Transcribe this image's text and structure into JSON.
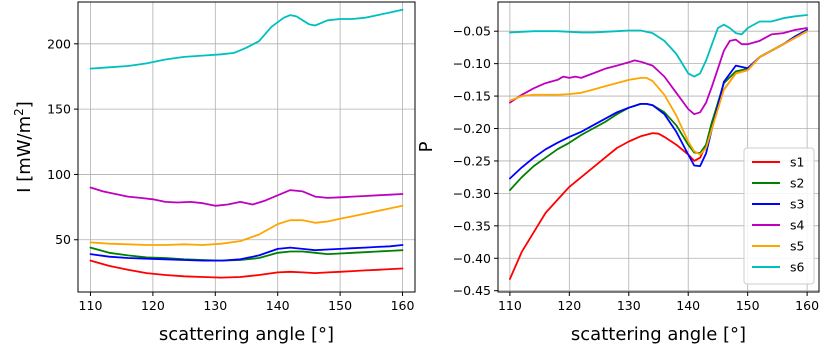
{
  "chart_data": [
    {
      "type": "line",
      "xlabel": "scattering angle [°]",
      "ylabel_main": "I [mW/m",
      "ylabel_sup": "2",
      "ylabel_tail": "]",
      "xlim": [
        108,
        162
      ],
      "ylim": [
        10,
        232
      ],
      "xticks": [
        110,
        120,
        130,
        140,
        150,
        160
      ],
      "yticks": [
        50,
        100,
        150,
        200
      ],
      "grid": true,
      "series": [
        {
          "color": "#ff0000",
          "x": [
            110,
            113,
            116,
            119,
            122,
            125,
            128,
            131,
            134,
            137,
            140,
            142,
            144,
            146,
            148,
            150,
            152,
            154,
            156,
            158,
            160
          ],
          "y": [
            34,
            30,
            27,
            24.5,
            23,
            22,
            21.5,
            21,
            21.5,
            23,
            25,
            25.5,
            25,
            24.5,
            25,
            25.5,
            26,
            26.5,
            27,
            27.5,
            28
          ]
        },
        {
          "color": "#008000",
          "x": [
            110,
            113,
            116,
            119,
            122,
            125,
            128,
            131,
            134,
            137,
            140,
            142,
            144,
            146,
            148,
            150,
            152,
            154,
            156,
            158,
            160
          ],
          "y": [
            44,
            40,
            38,
            36.5,
            36,
            35,
            34.5,
            34,
            34.5,
            36,
            40,
            41,
            41,
            40,
            39,
            39.5,
            40,
            40.5,
            41,
            41.5,
            42
          ]
        },
        {
          "color": "#0000ff",
          "x": [
            110,
            113,
            116,
            119,
            122,
            125,
            128,
            131,
            134,
            137,
            140,
            142,
            144,
            146,
            148,
            150,
            152,
            154,
            156,
            158,
            160
          ],
          "y": [
            39,
            37,
            36,
            35.5,
            35,
            34.5,
            34,
            34,
            35,
            38,
            43,
            44,
            43,
            42,
            42.5,
            43,
            43.5,
            44,
            44.5,
            45,
            46
          ]
        },
        {
          "color": "#bf00bf",
          "x": [
            110,
            112,
            114,
            116,
            118,
            120,
            122,
            124,
            126,
            128,
            130,
            132,
            134,
            136,
            138,
            140,
            142,
            144,
            146,
            148,
            150,
            152,
            154,
            156,
            158,
            160
          ],
          "y": [
            90,
            87,
            85,
            83,
            82,
            81,
            79,
            78.5,
            79,
            78,
            76,
            77,
            79,
            77,
            80,
            84,
            88,
            87,
            83,
            82,
            82.5,
            83,
            83.5,
            84,
            84.5,
            85
          ]
        },
        {
          "color": "#ffa500",
          "x": [
            110,
            113,
            116,
            119,
            122,
            125,
            128,
            131,
            134,
            137,
            140,
            142,
            144,
            146,
            148,
            150,
            152,
            154,
            156,
            158,
            160
          ],
          "y": [
            48,
            47,
            46.5,
            46,
            46,
            46.5,
            46,
            47,
            49,
            54,
            62,
            65,
            65,
            63,
            64,
            66,
            68,
            70,
            72,
            74,
            76
          ]
        },
        {
          "color": "#00bfbf",
          "x": [
            110,
            113,
            116,
            119,
            122,
            125,
            128,
            131,
            133,
            135,
            137,
            139,
            141,
            142,
            143,
            145,
            146,
            148,
            150,
            152,
            154,
            156,
            158,
            160
          ],
          "y": [
            181,
            182,
            183,
            185,
            188,
            190,
            191,
            192,
            193,
            197,
            202,
            213,
            220,
            222,
            221,
            215,
            214,
            218,
            219,
            219,
            220,
            222,
            224,
            226
          ]
        }
      ]
    },
    {
      "type": "line",
      "xlabel": "scattering angle [°]",
      "ylabel": "P",
      "xlim": [
        108,
        162
      ],
      "ylim": [
        -0.452,
        -0.005
      ],
      "xticks": [
        110,
        120,
        130,
        140,
        150,
        160
      ],
      "yticks": [
        -0.45,
        -0.4,
        -0.35,
        -0.3,
        -0.25,
        -0.2,
        -0.15,
        -0.1,
        -0.05
      ],
      "ytick_labels": [
        "−0.45",
        "−0.40",
        "−0.35",
        "−0.30",
        "−0.25",
        "−0.20",
        "−0.15",
        "−0.10",
        "−0.05"
      ],
      "grid": true,
      "legend_location": "lower-right",
      "series": [
        {
          "name": "s1",
          "color": "#ff0000",
          "x": [
            110,
            112,
            114,
            116,
            118,
            120,
            122,
            124,
            126,
            128,
            130,
            132,
            134,
            135,
            136,
            138,
            140,
            141,
            142,
            143,
            144,
            146,
            148,
            150,
            152,
            154,
            156,
            158,
            160
          ],
          "y": [
            -0.432,
            -0.39,
            -0.36,
            -0.33,
            -0.31,
            -0.29,
            -0.275,
            -0.26,
            -0.245,
            -0.23,
            -0.22,
            -0.212,
            -0.207,
            -0.208,
            -0.213,
            -0.225,
            -0.24,
            -0.25,
            -0.245,
            -0.225,
            -0.19,
            -0.14,
            -0.115,
            -0.11,
            -0.09,
            -0.08,
            -0.07,
            -0.06,
            -0.05
          ]
        },
        {
          "name": "s2",
          "color": "#008000",
          "x": [
            110,
            112,
            114,
            116,
            118,
            120,
            122,
            124,
            126,
            128,
            130,
            132,
            133,
            134,
            136,
            138,
            140,
            141,
            142,
            143,
            144,
            146,
            148,
            150,
            152,
            154,
            156,
            158,
            160
          ],
          "y": [
            -0.295,
            -0.275,
            -0.258,
            -0.245,
            -0.232,
            -0.222,
            -0.21,
            -0.2,
            -0.19,
            -0.178,
            -0.168,
            -0.162,
            -0.162,
            -0.164,
            -0.175,
            -0.195,
            -0.225,
            -0.237,
            -0.238,
            -0.225,
            -0.19,
            -0.13,
            -0.112,
            -0.108,
            -0.09,
            -0.08,
            -0.07,
            -0.058,
            -0.048
          ]
        },
        {
          "name": "s3",
          "color": "#0000ff",
          "x": [
            110,
            112,
            114,
            116,
            118,
            120,
            122,
            124,
            126,
            128,
            130,
            132,
            133,
            134,
            136,
            138,
            140,
            141,
            142,
            143,
            144,
            146,
            148,
            150,
            152,
            154,
            156,
            158,
            160
          ],
          "y": [
            -0.277,
            -0.26,
            -0.245,
            -0.232,
            -0.222,
            -0.213,
            -0.205,
            -0.195,
            -0.185,
            -0.175,
            -0.168,
            -0.162,
            -0.162,
            -0.164,
            -0.178,
            -0.205,
            -0.24,
            -0.257,
            -0.258,
            -0.238,
            -0.2,
            -0.128,
            -0.103,
            -0.107,
            -0.09,
            -0.08,
            -0.07,
            -0.058,
            -0.048
          ]
        },
        {
          "name": "s4",
          "color": "#bf00bf",
          "x": [
            110,
            112,
            114,
            116,
            118,
            119,
            120,
            121,
            122,
            124,
            126,
            128,
            130,
            131,
            132,
            133,
            134,
            136,
            138,
            140,
            141,
            142,
            143,
            144,
            146,
            147,
            148,
            149,
            150,
            152,
            154,
            156,
            158,
            160
          ],
          "y": [
            -0.16,
            -0.148,
            -0.138,
            -0.13,
            -0.125,
            -0.12,
            -0.122,
            -0.12,
            -0.122,
            -0.115,
            -0.108,
            -0.103,
            -0.098,
            -0.095,
            -0.097,
            -0.1,
            -0.103,
            -0.12,
            -0.145,
            -0.17,
            -0.178,
            -0.175,
            -0.16,
            -0.135,
            -0.08,
            -0.065,
            -0.063,
            -0.07,
            -0.07,
            -0.065,
            -0.055,
            -0.053,
            -0.048,
            -0.045
          ]
        },
        {
          "name": "s5",
          "color": "#ffa500",
          "x": [
            110,
            112,
            114,
            116,
            118,
            120,
            122,
            124,
            126,
            128,
            130,
            132,
            133,
            134,
            136,
            138,
            140,
            141,
            142,
            143,
            144,
            146,
            148,
            150,
            152,
            154,
            156,
            158,
            160
          ],
          "y": [
            -0.157,
            -0.15,
            -0.148,
            -0.148,
            -0.148,
            -0.147,
            -0.145,
            -0.14,
            -0.135,
            -0.13,
            -0.125,
            -0.122,
            -0.122,
            -0.127,
            -0.148,
            -0.18,
            -0.22,
            -0.235,
            -0.24,
            -0.23,
            -0.2,
            -0.14,
            -0.115,
            -0.11,
            -0.09,
            -0.08,
            -0.07,
            -0.06,
            -0.05
          ]
        },
        {
          "name": "s6",
          "color": "#00bfbf",
          "x": [
            110,
            112,
            114,
            116,
            118,
            120,
            122,
            124,
            126,
            128,
            130,
            132,
            134,
            136,
            138,
            139,
            140,
            141,
            142,
            143,
            144,
            145,
            146,
            147,
            148,
            149,
            150,
            152,
            154,
            156,
            158,
            160
          ],
          "y": [
            -0.052,
            -0.051,
            -0.05,
            -0.05,
            -0.05,
            -0.051,
            -0.052,
            -0.052,
            -0.051,
            -0.05,
            -0.049,
            -0.049,
            -0.053,
            -0.065,
            -0.085,
            -0.1,
            -0.115,
            -0.12,
            -0.115,
            -0.095,
            -0.07,
            -0.045,
            -0.04,
            -0.045,
            -0.053,
            -0.055,
            -0.045,
            -0.035,
            -0.035,
            -0.03,
            -0.027,
            -0.025
          ]
        }
      ]
    }
  ]
}
